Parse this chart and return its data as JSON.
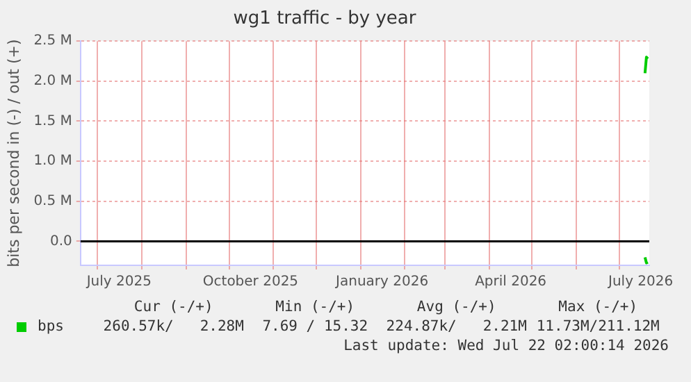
{
  "chart_data": {
    "type": "line",
    "title": "wg1 traffic - by year",
    "ylabel": "bits per second in (-) / out (+)",
    "xlim": [
      "2025-06-19",
      "2026-07-22"
    ],
    "xticks": [
      {
        "value": "2025-07-01",
        "label": null
      },
      {
        "value": "2025-07-16",
        "label": "July 2025"
      },
      {
        "value": "2025-08-01",
        "label": null
      },
      {
        "value": "2025-09-01",
        "label": null
      },
      {
        "value": "2025-10-01",
        "label": null
      },
      {
        "value": "2025-10-16",
        "label": "October 2025"
      },
      {
        "value": "2025-11-01",
        "label": null
      },
      {
        "value": "2025-12-01",
        "label": null
      },
      {
        "value": "2026-01-01",
        "label": null
      },
      {
        "value": "2026-01-16",
        "label": "January 2026"
      },
      {
        "value": "2026-02-01",
        "label": null
      },
      {
        "value": "2026-03-01",
        "label": null
      },
      {
        "value": "2026-04-01",
        "label": null
      },
      {
        "value": "2026-04-16",
        "label": "April 2026"
      },
      {
        "value": "2026-05-01",
        "label": null
      },
      {
        "value": "2026-06-01",
        "label": null
      },
      {
        "value": "2026-07-01",
        "label": null
      },
      {
        "value": "2026-07-16",
        "label": "July 2026"
      }
    ],
    "ylim": [
      -300000,
      2500000
    ],
    "yticks": [
      {
        "value": 0,
        "label": "0.0"
      },
      {
        "value": 500000,
        "label": "0.5 M"
      },
      {
        "value": 1000000,
        "label": "1.0 M"
      },
      {
        "value": 1500000,
        "label": "1.5 M"
      },
      {
        "value": 2000000,
        "label": "2.0 M"
      },
      {
        "value": 2500000,
        "label": "2.5 M"
      }
    ],
    "grid": true,
    "legend": "bottom",
    "marker": "none",
    "line_style": "solid",
    "series": [
      {
        "name": "bps",
        "color": "#00cc00",
        "x": [
          "2026-07-19",
          "2026-07-20",
          "2026-07-21"
        ],
        "values": [
          2100000,
          2300000,
          2280000
        ]
      },
      {
        "color": "#00cc00",
        "x": [
          "2026-07-19",
          "2026-07-20",
          "2026-07-21"
        ],
        "values": [
          -200000,
          -270000,
          -260000
        ]
      }
    ],
    "ref_lines": [
      {
        "axis": "y",
        "value": 0,
        "color": "#000000"
      }
    ],
    "annotations": [
      "Cur (-/+)",
      "Min (-/+)",
      "Avg (-/+)",
      "Max (-/+)",
      "260.57k/   2.28M",
      "7.69 / 15.32",
      "224.87k/   2.21M",
      "11.73M/211.12M",
      "Last update: Wed Jul 22 02:00:14 2026"
    ]
  }
}
